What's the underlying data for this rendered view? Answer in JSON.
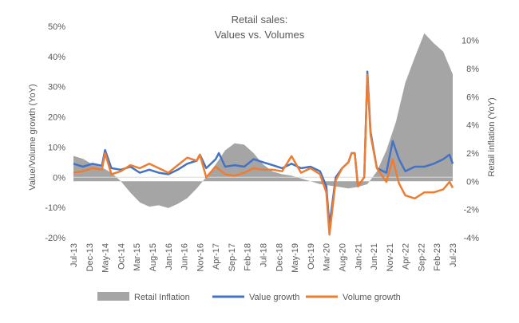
{
  "chart_data": {
    "type": "line",
    "title": "Retail sales:",
    "subtitle": "Values vs. Volumes",
    "ylabel": "Value/Volume growth (YoY)",
    "y2label": "Retail inflation (YoY)",
    "ylim": [
      -20,
      50
    ],
    "y2lim": [
      -4,
      11
    ],
    "yticks": [
      "-20%",
      "-10%",
      "0%",
      "10%",
      "20%",
      "30%",
      "40%",
      "50%"
    ],
    "y2ticks": [
      "-4%",
      "-2%",
      "0%",
      "2%",
      "4%",
      "6%",
      "8%",
      "10%"
    ],
    "x_start": "Jul-13",
    "x_end": "Jul-23",
    "xticks": [
      "Jul-13",
      "Dec-13",
      "May-14",
      "Oct-14",
      "Mar-15",
      "Aug-15",
      "Jan-16",
      "Jun-16",
      "Nov-16",
      "Apr-17",
      "Sep-17",
      "Feb-18",
      "Jul-18",
      "Dec-18",
      "May-19",
      "Oct-19",
      "Mar-20",
      "Aug-20",
      "Jan-21",
      "Jun-21",
      "Nov-21",
      "Apr-22",
      "Sep-22",
      "Feb-23",
      "Jul-23"
    ],
    "grid": false,
    "legend_position": "bottom",
    "series": [
      {
        "name": "Retail Inflation",
        "kind": "area",
        "axis": "right",
        "color": "#a5a5a5",
        "points": [
          [
            "Jul-13",
            1.8
          ],
          [
            "Oct-13",
            1.6
          ],
          [
            "Jan-14",
            1.2
          ],
          [
            "Apr-14",
            1.0
          ],
          [
            "Jul-14",
            0.6
          ],
          [
            "Oct-14",
            0.0
          ],
          [
            "Jan-15",
            -0.8
          ],
          [
            "Apr-15",
            -1.5
          ],
          [
            "Jul-15",
            -1.8
          ],
          [
            "Oct-15",
            -1.7
          ],
          [
            "Jan-16",
            -1.9
          ],
          [
            "Apr-16",
            -1.6
          ],
          [
            "Jul-16",
            -1.2
          ],
          [
            "Oct-16",
            -0.5
          ],
          [
            "Jan-17",
            0.3
          ],
          [
            "Apr-17",
            1.2
          ],
          [
            "Jul-17",
            2.2
          ],
          [
            "Oct-17",
            2.7
          ],
          [
            "Jan-18",
            2.6
          ],
          [
            "Apr-18",
            2.0
          ],
          [
            "Jul-18",
            1.2
          ],
          [
            "Oct-18",
            0.7
          ],
          [
            "Jan-19",
            0.5
          ],
          [
            "Apr-19",
            0.4
          ],
          [
            "Jul-19",
            0.2
          ],
          [
            "Oct-19",
            0.0
          ],
          [
            "Jan-20",
            -0.2
          ],
          [
            "Apr-20",
            -0.3
          ],
          [
            "Jul-20",
            -0.4
          ],
          [
            "Oct-20",
            -0.5
          ],
          [
            "Jan-21",
            -0.4
          ],
          [
            "Apr-21",
            -0.2
          ],
          [
            "Jul-21",
            0.7
          ],
          [
            "Oct-21",
            2.2
          ],
          [
            "Jan-22",
            4.2
          ],
          [
            "Apr-22",
            7.0
          ],
          [
            "Jul-22",
            8.8
          ],
          [
            "Oct-22",
            10.5
          ],
          [
            "Jan-23",
            9.8
          ],
          [
            "Apr-23",
            9.2
          ],
          [
            "Jul-23",
            7.6
          ]
        ]
      },
      {
        "name": "Value growth",
        "kind": "line",
        "axis": "left",
        "color": "#4472c4",
        "points": [
          [
            "Jul-13",
            4.5
          ],
          [
            "Oct-13",
            3.5
          ],
          [
            "Jan-14",
            4.5
          ],
          [
            "Apr-14",
            3.8
          ],
          [
            "May-14",
            9.0
          ],
          [
            "Jul-14",
            3.0
          ],
          [
            "Oct-14",
            2.5
          ],
          [
            "Jan-15",
            3.5
          ],
          [
            "Apr-15",
            1.5
          ],
          [
            "Jul-15",
            2.5
          ],
          [
            "Oct-15",
            1.5
          ],
          [
            "Jan-16",
            1.0
          ],
          [
            "Apr-16",
            2.5
          ],
          [
            "Jul-16",
            4.5
          ],
          [
            "Oct-16",
            5.5
          ],
          [
            "Nov-16",
            7.5
          ],
          [
            "Jan-17",
            3.0
          ],
          [
            "Apr-17",
            6.0
          ],
          [
            "May-17",
            8.0
          ],
          [
            "Jul-17",
            3.5
          ],
          [
            "Oct-17",
            4.0
          ],
          [
            "Jan-18",
            3.5
          ],
          [
            "Apr-18",
            6.0
          ],
          [
            "Jul-18",
            5.0
          ],
          [
            "Oct-18",
            4.0
          ],
          [
            "Jan-19",
            3.0
          ],
          [
            "Apr-19",
            4.5
          ],
          [
            "Jul-19",
            3.0
          ],
          [
            "Oct-19",
            3.5
          ],
          [
            "Jan-20",
            2.0
          ],
          [
            "Mar-20",
            -3.0
          ],
          [
            "Apr-20",
            -16.0
          ],
          [
            "Jun-20",
            0.0
          ],
          [
            "Aug-20",
            3.0
          ],
          [
            "Oct-20",
            5.0
          ],
          [
            "Nov-20",
            8.0
          ],
          [
            "Dec-20",
            8.0
          ],
          [
            "Jan-21",
            -3.0
          ],
          [
            "Mar-21",
            0.0
          ],
          [
            "Apr-21",
            35.0
          ],
          [
            "May-21",
            15.0
          ],
          [
            "Jul-21",
            3.0
          ],
          [
            "Oct-21",
            1.5
          ],
          [
            "Dec-21",
            12.0
          ],
          [
            "Feb-22",
            6.0
          ],
          [
            "Apr-22",
            2.0
          ],
          [
            "Jul-22",
            3.5
          ],
          [
            "Oct-22",
            3.5
          ],
          [
            "Jan-23",
            4.5
          ],
          [
            "Apr-23",
            6.0
          ],
          [
            "Jun-23",
            7.5
          ],
          [
            "Jul-23",
            4.5
          ]
        ]
      },
      {
        "name": "Volume growth",
        "kind": "line",
        "axis": "left",
        "color": "#ed7d31",
        "points": [
          [
            "Jul-13",
            1.5
          ],
          [
            "Oct-13",
            2.0
          ],
          [
            "Jan-14",
            3.0
          ],
          [
            "Apr-14",
            2.5
          ],
          [
            "May-14",
            8.0
          ],
          [
            "Jul-14",
            1.0
          ],
          [
            "Oct-14",
            2.0
          ],
          [
            "Jan-15",
            4.0
          ],
          [
            "Apr-15",
            3.0
          ],
          [
            "Jul-15",
            4.5
          ],
          [
            "Oct-15",
            3.0
          ],
          [
            "Jan-16",
            1.5
          ],
          [
            "Apr-16",
            4.0
          ],
          [
            "Jul-16",
            6.5
          ],
          [
            "Oct-16",
            5.5
          ],
          [
            "Nov-16",
            7.5
          ],
          [
            "Jan-17",
            0.0
          ],
          [
            "Apr-17",
            3.5
          ],
          [
            "Jul-17",
            1.0
          ],
          [
            "Oct-17",
            0.5
          ],
          [
            "Jan-18",
            1.5
          ],
          [
            "Apr-18",
            3.0
          ],
          [
            "Jul-18",
            2.5
          ],
          [
            "Oct-18",
            2.5
          ],
          [
            "Jan-19",
            2.0
          ],
          [
            "Apr-19",
            7.0
          ],
          [
            "Jul-19",
            1.5
          ],
          [
            "Oct-19",
            3.0
          ],
          [
            "Jan-20",
            1.0
          ],
          [
            "Mar-20",
            -5.0
          ],
          [
            "Apr-20",
            -19.0
          ],
          [
            "Jun-20",
            -1.0
          ],
          [
            "Aug-20",
            3.0
          ],
          [
            "Oct-20",
            5.0
          ],
          [
            "Nov-20",
            8.0
          ],
          [
            "Dec-20",
            8.0
          ],
          [
            "Jan-21",
            -3.0
          ],
          [
            "Mar-21",
            0.0
          ],
          [
            "Apr-21",
            34.0
          ],
          [
            "May-21",
            14.0
          ],
          [
            "Jul-21",
            3.0
          ],
          [
            "Oct-21",
            -1.5
          ],
          [
            "Dec-21",
            6.0
          ],
          [
            "Feb-22",
            -2.0
          ],
          [
            "Apr-22",
            -6.0
          ],
          [
            "Jul-22",
            -7.0
          ],
          [
            "Oct-22",
            -5.0
          ],
          [
            "Jan-23",
            -5.0
          ],
          [
            "Apr-23",
            -4.0
          ],
          [
            "Jun-23",
            -1.5
          ],
          [
            "Jul-23",
            -3.5
          ]
        ]
      }
    ]
  }
}
